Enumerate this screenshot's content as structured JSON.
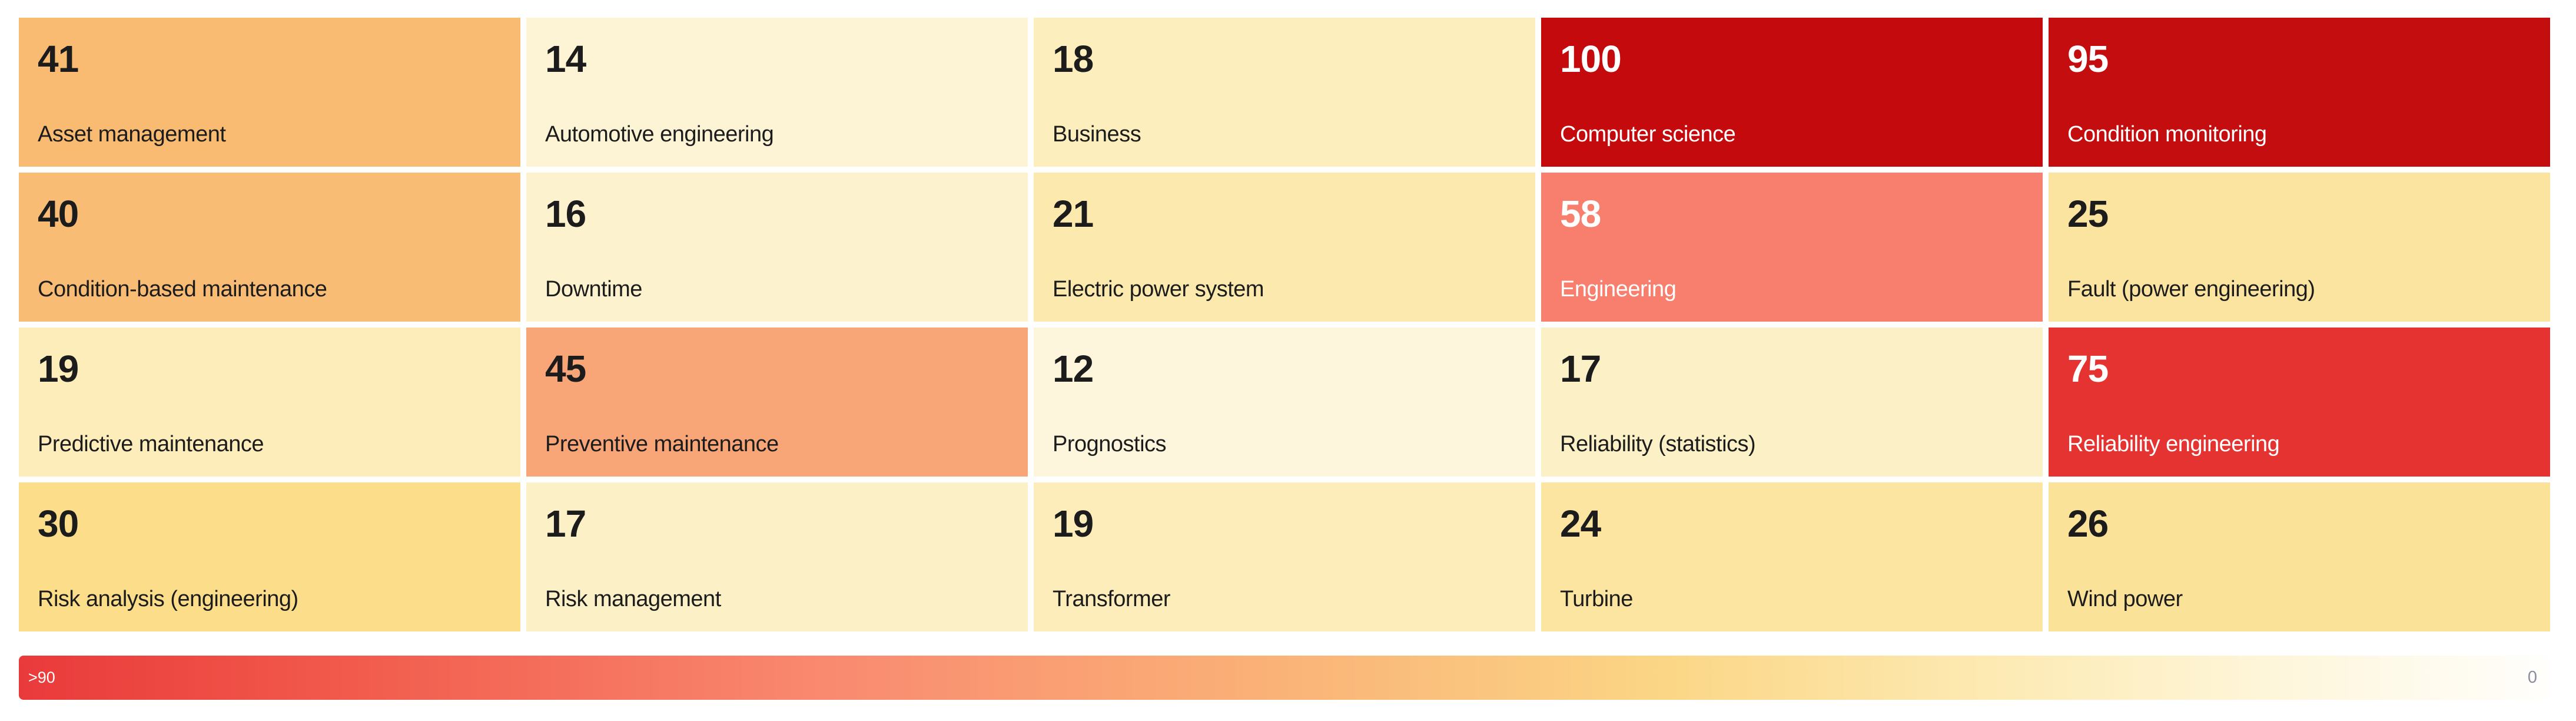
{
  "chart_data": {
    "type": "heatmap",
    "title": "",
    "layout": {
      "columns": 5,
      "rows": 4
    },
    "value_range": [
      0,
      100
    ],
    "items": [
      {
        "label": "Asset management",
        "value": 41,
        "bg": "#f9bb72",
        "fg": "#1c1c1c"
      },
      {
        "label": "Automotive engineering",
        "value": 14,
        "bg": "#fdf4d5",
        "fg": "#1c1c1c"
      },
      {
        "label": "Business",
        "value": 18,
        "bg": "#fceebd",
        "fg": "#1c1c1c"
      },
      {
        "label": "Computer science",
        "value": 100,
        "bg": "#c40a0d",
        "fg": "#ffffff"
      },
      {
        "label": "Condition monitoring",
        "value": 95,
        "bg": "#c40d0f",
        "fg": "#ffffff"
      },
      {
        "label": "Condition-based maintenance",
        "value": 40,
        "bg": "#f9bc74",
        "fg": "#1c1c1c"
      },
      {
        "label": "Downtime",
        "value": 16,
        "bg": "#fcf2cd",
        "fg": "#1c1c1c"
      },
      {
        "label": "Electric power system",
        "value": 21,
        "bg": "#fbe9ae",
        "fg": "#1c1c1c"
      },
      {
        "label": "Engineering",
        "value": 58,
        "bg": "#f87e6d",
        "fg": "#ffffff"
      },
      {
        "label": "Fault (power engineering)",
        "value": 25,
        "bg": "#fbe4a0",
        "fg": "#1c1c1c"
      },
      {
        "label": "Predictive maintenance",
        "value": 19,
        "bg": "#fcedbb",
        "fg": "#1c1c1c"
      },
      {
        "label": "Preventive maintenance",
        "value": 45,
        "bg": "#f8a678",
        "fg": "#1c1c1c"
      },
      {
        "label": "Prognostics",
        "value": 12,
        "bg": "#fdf6dd",
        "fg": "#1c1c1c"
      },
      {
        "label": "Reliability (statistics)",
        "value": 17,
        "bg": "#fcf0c6",
        "fg": "#1c1c1c"
      },
      {
        "label": "Reliability engineering",
        "value": 75,
        "bg": "#e53331",
        "fg": "#ffffff"
      },
      {
        "label": "Risk analysis (engineering)",
        "value": 30,
        "bg": "#fbdd8a",
        "fg": "#1c1c1c"
      },
      {
        "label": "Risk management",
        "value": 17,
        "bg": "#fcf0c6",
        "fg": "#1c1c1c"
      },
      {
        "label": "Transformer",
        "value": 19,
        "bg": "#fcedbb",
        "fg": "#1c1c1c"
      },
      {
        "label": "Turbine",
        "value": 24,
        "bg": "#fbe5a0",
        "fg": "#1c1c1c"
      },
      {
        "label": "Wind power",
        "value": 26,
        "bg": "#fbe299",
        "fg": "#1c1c1c"
      }
    ],
    "legend": {
      "left_label": ">90",
      "right_label": "0",
      "right_label_color": "#8a8fa0",
      "gradient_stops": [
        "#e93a3b 0%",
        "#f1584a 12%",
        "#f98a70 32%",
        "#fab377 50%",
        "#fbd686 65%",
        "#fdeab3 78%",
        "#fef6da 89%",
        "#fffefc 100%"
      ]
    }
  }
}
